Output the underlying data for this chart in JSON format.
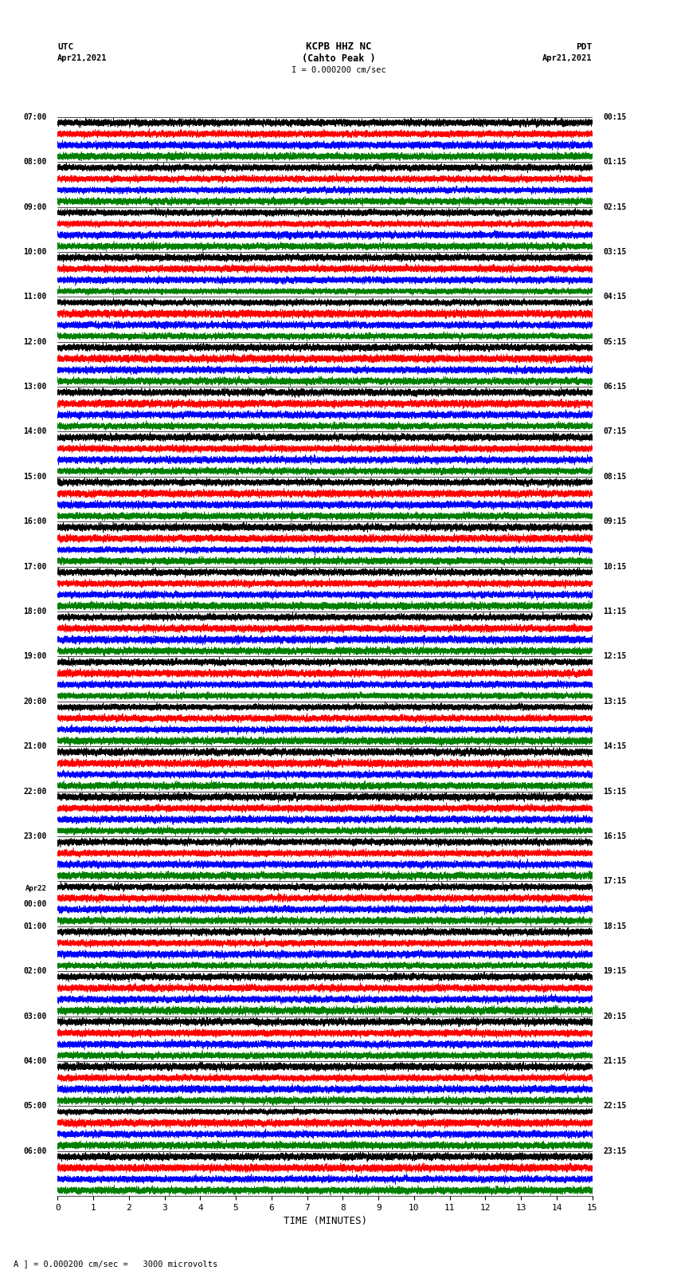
{
  "title_line1": "KCPB HHZ NC",
  "title_line2": "(Cahto Peak )",
  "scale_label": "I = 0.000200 cm/sec",
  "left_date": "Apr21,2021",
  "right_date": "Apr21,2021",
  "left_label": "UTC",
  "right_label": "PDT",
  "bottom_label": "TIME (MINUTES)",
  "scale_note": "A ] = 0.000200 cm/sec =   3000 microvolts",
  "utc_times": [
    "07:00",
    "08:00",
    "09:00",
    "10:00",
    "11:00",
    "12:00",
    "13:00",
    "14:00",
    "15:00",
    "16:00",
    "17:00",
    "18:00",
    "19:00",
    "20:00",
    "21:00",
    "22:00",
    "23:00",
    "Apr22\n00:00",
    "01:00",
    "02:00",
    "03:00",
    "04:00",
    "05:00",
    "06:00"
  ],
  "pdt_times": [
    "00:15",
    "01:15",
    "02:15",
    "03:15",
    "04:15",
    "05:15",
    "06:15",
    "07:15",
    "08:15",
    "09:15",
    "10:15",
    "11:15",
    "12:15",
    "13:15",
    "14:15",
    "15:15",
    "16:15",
    "17:15",
    "18:15",
    "19:15",
    "20:15",
    "21:15",
    "22:15",
    "23:15"
  ],
  "num_rows": 24,
  "traces_per_row": 4,
  "colors": [
    "black",
    "red",
    "blue",
    "green"
  ],
  "bg_color": "white",
  "xlim": [
    0,
    15
  ],
  "x_ticks": [
    0,
    1,
    2,
    3,
    4,
    5,
    6,
    7,
    8,
    9,
    10,
    11,
    12,
    13,
    14,
    15
  ],
  "figsize": [
    8.5,
    16.13
  ],
  "dpi": 100
}
